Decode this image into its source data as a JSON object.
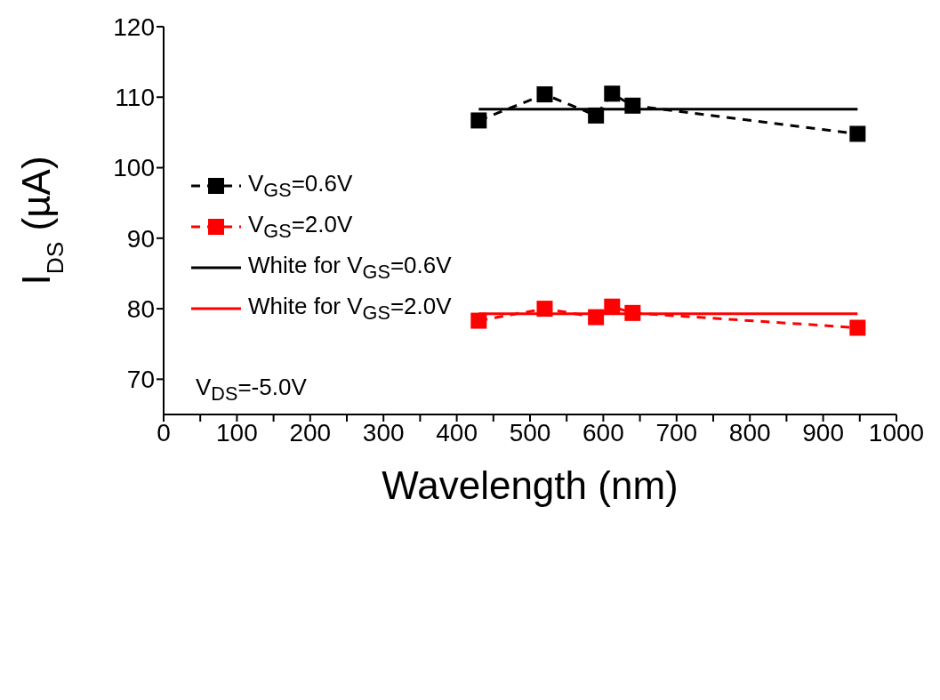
{
  "chart_data": {
    "type": "line",
    "xlabel": "Wavelength (nm)",
    "ylabel": "I$_{DS}$ (µA)",
    "xlim": [
      0,
      1000
    ],
    "ylim": [
      65,
      120
    ],
    "xticks": [
      0,
      {
        "value": 50,
        "label": null
      },
      100,
      {
        "value": 150,
        "label": null
      },
      200,
      {
        "value": 250,
        "label": null
      },
      300,
      {
        "value": 350,
        "label": null
      },
      400,
      {
        "value": 450,
        "label": null
      },
      500,
      {
        "value": 550,
        "label": null
      },
      600,
      {
        "value": 650,
        "label": null
      },
      700,
      {
        "value": 750,
        "label": null
      },
      800,
      {
        "value": 850,
        "label": null
      },
      900,
      {
        "value": 950,
        "label": null
      },
      1000
    ],
    "yticks": [
      70,
      80,
      90,
      100,
      110,
      120
    ],
    "legend": "left",
    "annotations": [
      "V$_{DS}$=-5.0V"
    ],
    "series": [
      {
        "name": "V$_{GS}$=0.6V",
        "marker": "square",
        "line_style": "dashed",
        "color": "#000000",
        "x": [
          430,
          520,
          590,
          612,
          640,
          947
        ],
        "values": [
          106.7,
          110.4,
          107.4,
          110.5,
          108.8,
          104.8
        ]
      },
      {
        "name": "V$_{GS}$=2.0V",
        "marker": "square",
        "line_style": "dashed",
        "color": "#ff0000",
        "x": [
          430,
          520,
          590,
          612,
          640,
          947
        ],
        "values": [
          78.3,
          80.0,
          78.8,
          80.3,
          79.4,
          77.3
        ]
      },
      {
        "name": "White for V$_{GS}$=0.6V",
        "marker": "none",
        "line_style": "solid",
        "color": "#000000",
        "x": [
          430,
          947
        ],
        "values": [
          108.3,
          108.3
        ]
      },
      {
        "name": "White for V$_{GS}$=2.0V",
        "marker": "none",
        "line_style": "solid",
        "color": "#ff0000",
        "x": [
          430,
          947
        ],
        "values": [
          79.3,
          79.3
        ]
      }
    ]
  }
}
